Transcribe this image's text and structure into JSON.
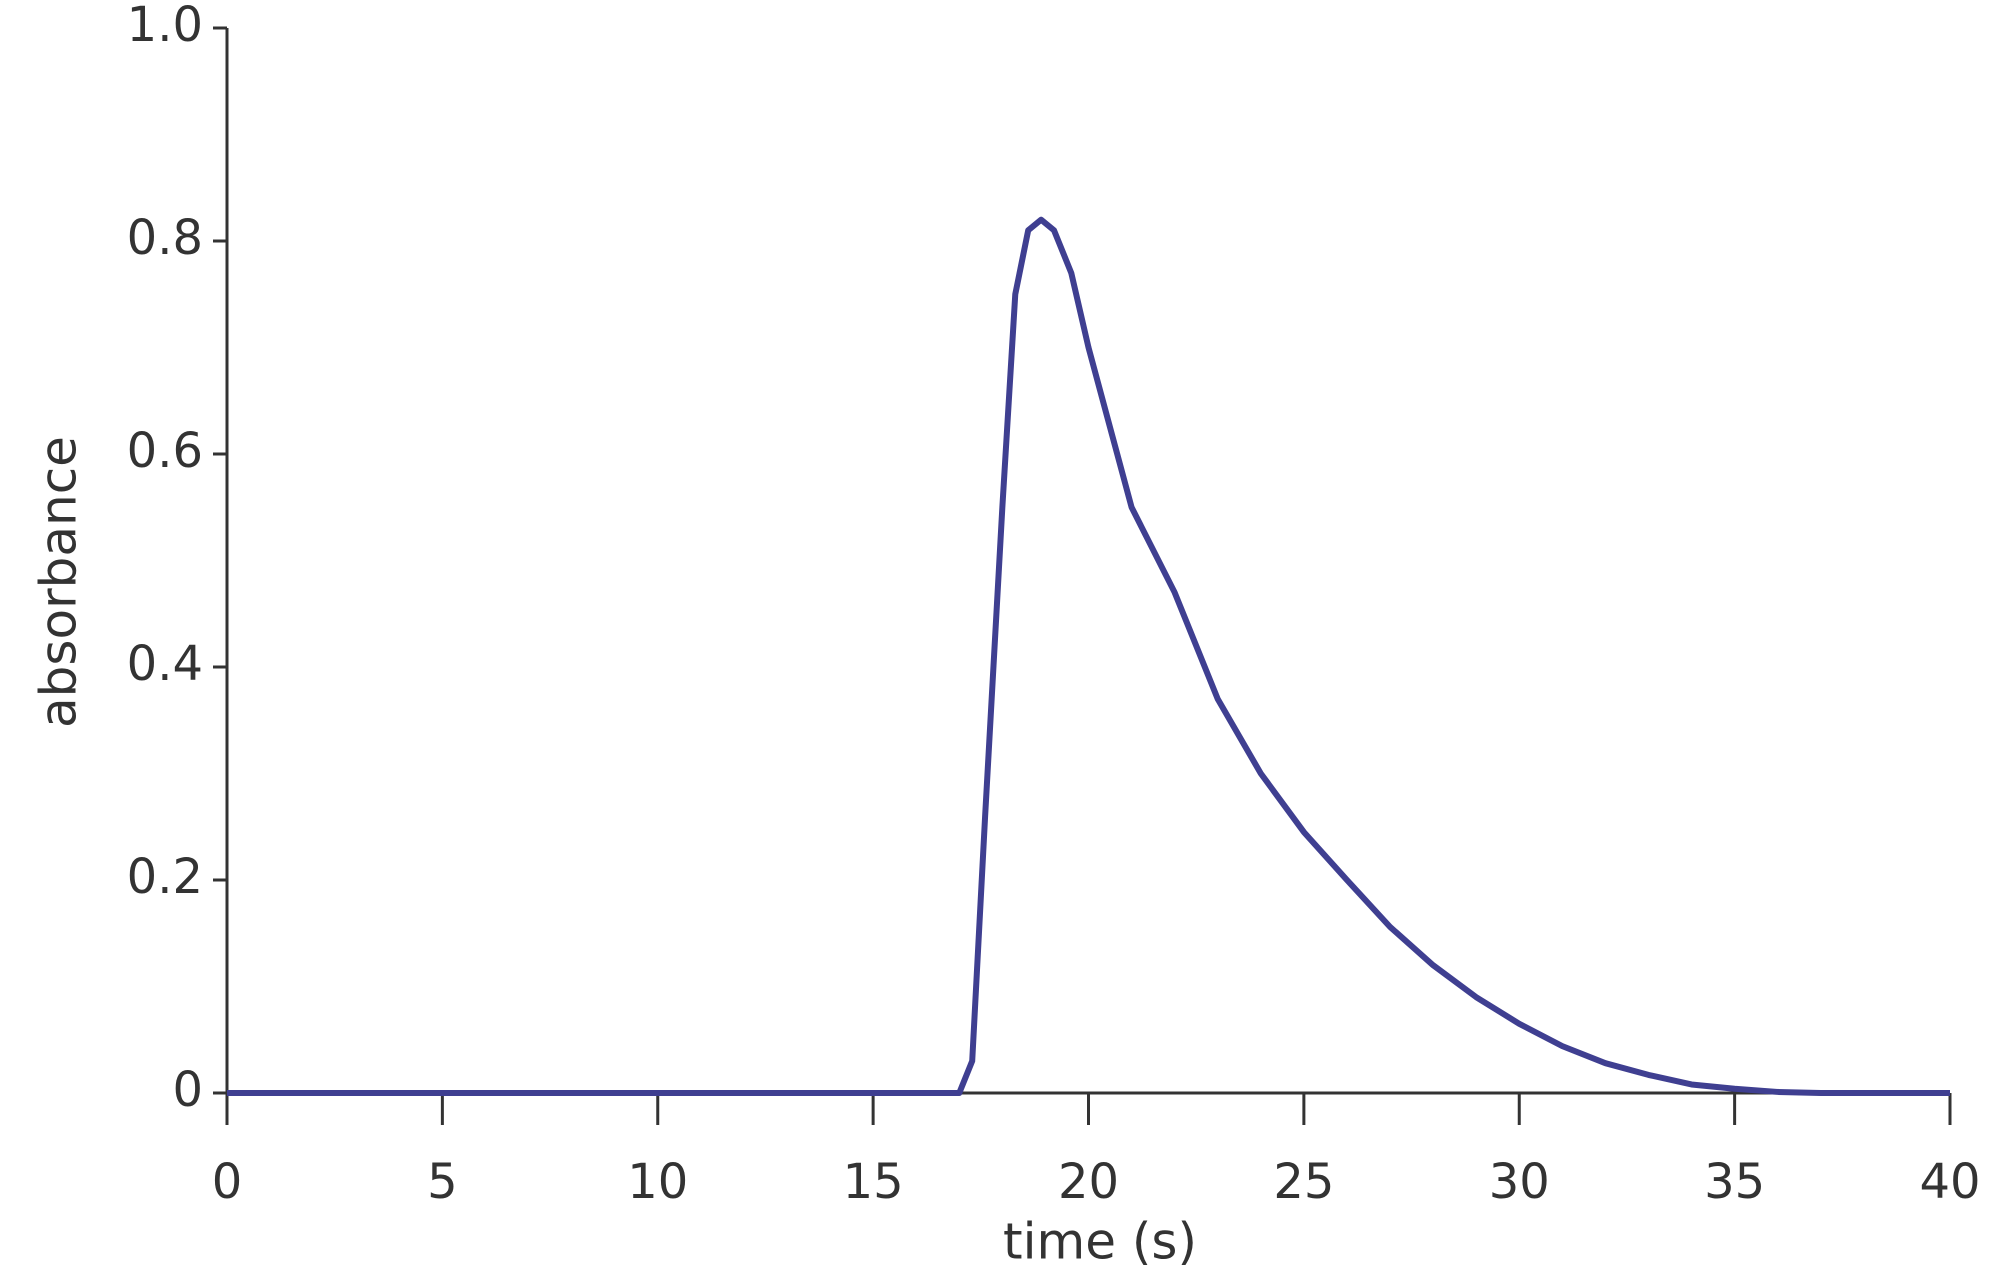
{
  "chart_data": {
    "type": "line",
    "x_label": "time (s)",
    "y_label": "absorbance",
    "x": [
      0,
      17,
      17.3,
      17.6,
      18,
      18.3,
      18.6,
      18.9,
      19.2,
      19.6,
      20,
      21,
      22,
      23,
      24,
      25,
      26,
      27,
      28,
      29,
      30,
      31,
      32,
      33,
      34,
      35,
      36,
      37,
      40
    ],
    "series": [
      {
        "color": "#3f3f91",
        "values": [
          0,
          0,
          0.03,
          0.26,
          0.55,
          0.75,
          0.81,
          0.82,
          0.81,
          0.77,
          0.7,
          0.55,
          0.47,
          0.37,
          0.3,
          0.245,
          0.2,
          0.156,
          0.12,
          0.09,
          0.065,
          0.044,
          0.028,
          0.017,
          0.008,
          0.004,
          0.001,
          0,
          0
        ]
      }
    ],
    "xlim": [
      0,
      40
    ],
    "xticks": [
      0,
      5,
      10,
      15,
      20,
      25,
      30,
      35,
      40
    ],
    "ylim": [
      0,
      1
    ],
    "yticks": [
      0,
      0.2,
      0.4,
      0.6,
      0.8,
      {
        "value": 1,
        "label": "1.0"
      }
    ],
    "grid": false
  }
}
